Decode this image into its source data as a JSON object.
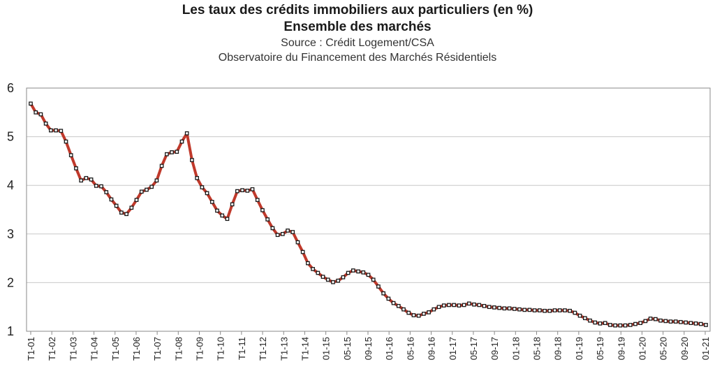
{
  "chart_data": {
    "type": "line",
    "title": "Les taux des crédits immobiliers aux particuliers (en %)",
    "subtitle": "Ensemble des marchés",
    "source": "Source : Crédit Logement/CSA",
    "note": "Observatoire du Financement des Marchés Résidentiels",
    "xlabel": "",
    "ylabel": "",
    "ylim": [
      1,
      6
    ],
    "yticks": [
      1,
      2,
      3,
      4,
      5,
      6
    ],
    "grid": true,
    "legend": "none",
    "series_color": "#c0392b",
    "marker_color": "#1a1a1a",
    "x_tick_labels": [
      "T1-01",
      "T1-02",
      "T1-03",
      "T1-04",
      "T1-05",
      "T1-06",
      "T1-07",
      "T1-08",
      "T1-09",
      "T1-10",
      "T1-11",
      "T1-12",
      "T1-13",
      "T1-14",
      "01-15",
      "05-15",
      "09-15",
      "01-16",
      "05-16",
      "09-16",
      "01-17",
      "05-17",
      "09-17",
      "01-18",
      "05-18",
      "09-18",
      "01-19",
      "05-19",
      "09-19",
      "01-20",
      "05-20",
      "09-20",
      "01-21"
    ],
    "series": [
      {
        "values": [
          5.68,
          5.5,
          5.46,
          5.27,
          5.13,
          5.13,
          5.12,
          4.9,
          4.62,
          4.35,
          4.1,
          4.15,
          4.12,
          3.99,
          3.98,
          3.86,
          3.71,
          3.58,
          3.44,
          3.41,
          3.54,
          3.7,
          3.87,
          3.91,
          3.97,
          4.1,
          4.4,
          4.64,
          4.68,
          4.69,
          4.9,
          5.07,
          4.52,
          4.15,
          3.96,
          3.84,
          3.66,
          3.48,
          3.38,
          3.31,
          3.61,
          3.88,
          3.9,
          3.89,
          3.92,
          3.7,
          3.49,
          3.3,
          3.12,
          2.98,
          3.0,
          3.07,
          3.04,
          2.83,
          2.63,
          2.4,
          2.28,
          2.2,
          2.12,
          2.06,
          2.01,
          2.04,
          2.11,
          2.2,
          2.25,
          2.23,
          2.21,
          2.16,
          2.06,
          1.92,
          1.78,
          1.67,
          1.58,
          1.52,
          1.45,
          1.38,
          1.33,
          1.32,
          1.36,
          1.39,
          1.45,
          1.5,
          1.53,
          1.54,
          1.54,
          1.53,
          1.54,
          1.57,
          1.55,
          1.54,
          1.52,
          1.5,
          1.49,
          1.48,
          1.47,
          1.47,
          1.46,
          1.45,
          1.44,
          1.44,
          1.43,
          1.43,
          1.42,
          1.42,
          1.43,
          1.43,
          1.43,
          1.42,
          1.38,
          1.32,
          1.27,
          1.22,
          1.18,
          1.16,
          1.17,
          1.13,
          1.12,
          1.12,
          1.12,
          1.13,
          1.15,
          1.17,
          1.21,
          1.26,
          1.25,
          1.22,
          1.21,
          1.2,
          1.2,
          1.19,
          1.18,
          1.17,
          1.16,
          1.15,
          1.13
        ]
      }
    ]
  }
}
